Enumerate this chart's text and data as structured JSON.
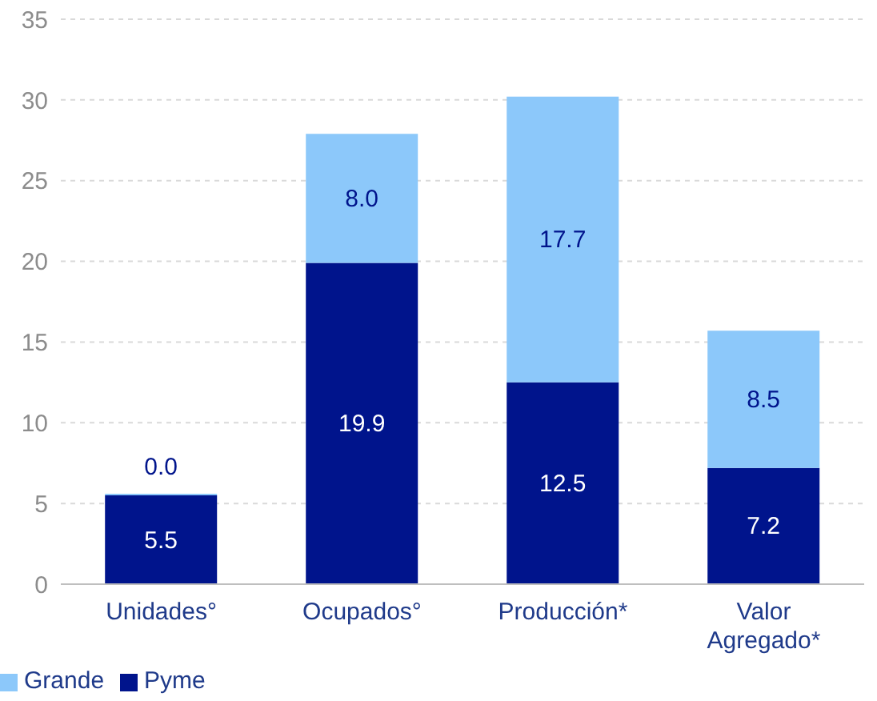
{
  "chart_data": {
    "type": "bar",
    "stacked": true,
    "categories": [
      "Unidades°",
      "Ocupados°",
      "Producción*",
      "Valor Agregado*"
    ],
    "series": [
      {
        "name": "Pyme",
        "color": "#00148c",
        "values": [
          5.5,
          19.9,
          12.5,
          7.2
        ],
        "value_labels": [
          "5.5",
          "19.9",
          "12.5",
          "7.2"
        ]
      },
      {
        "name": "Grande",
        "color": "#8cc8fa",
        "values": [
          0.0,
          8.0,
          17.7,
          8.5
        ],
        "value_labels": [
          "0.0",
          "8.0",
          "17.7",
          "8.5"
        ]
      }
    ],
    "ylim": [
      0,
      35
    ],
    "yticks": [
      0,
      5,
      10,
      15,
      20,
      25,
      30,
      35
    ],
    "grid": "y",
    "legend": "bottom left"
  }
}
